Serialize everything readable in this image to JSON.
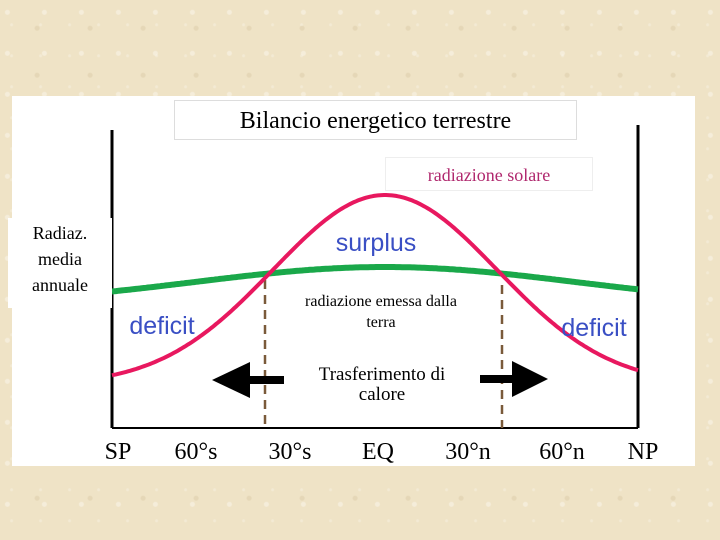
{
  "title": "Bilancio energetico terrestre",
  "labels": {
    "solar_radiation": "radiazione solare",
    "y_axis": [
      "Radiaz.",
      "media",
      "annuale"
    ],
    "emitted_radiation": [
      "radiazione emessa dalla",
      "terra"
    ],
    "heat_transfer": [
      "Trasferimento di",
      "calore"
    ],
    "surplus": "surplus",
    "deficit_left": "deficit",
    "deficit_right": "deficit"
  },
  "x_axis_labels": [
    "SP",
    "60°s",
    "30°s",
    "EQ",
    "30°n",
    "60°n",
    "NP"
  ],
  "colors": {
    "solar_curve": "#e8185f",
    "emitted_curve": "#1aa84a",
    "label_text": "#3a4fc4",
    "solar_text": "#b0286e",
    "axis": "#000000",
    "guide_line": "#7a5a3a"
  },
  "arrows": [
    "left-arrow",
    "right-arrow"
  ]
}
